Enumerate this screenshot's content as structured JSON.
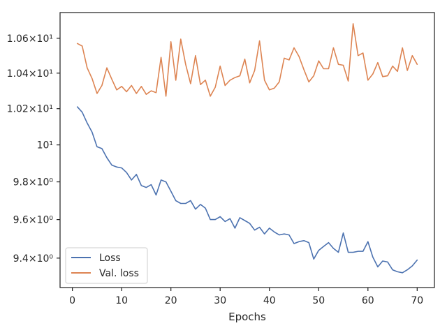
{
  "chart_data": {
    "type": "line",
    "xlabel": "Epochs",
    "ylabel": "",
    "xlim": [
      -2.5,
      73.5
    ],
    "ylim": [
      9.25,
      10.75
    ],
    "y_scale": "log",
    "grid": false,
    "legend": "lower-left",
    "x_ticks": [
      0,
      10,
      20,
      30,
      40,
      50,
      60,
      70
    ],
    "x_tick_labels": [
      "0",
      "10",
      "20",
      "30",
      "40",
      "50",
      "60",
      "70"
    ],
    "y_ticks": [
      9.4,
      9.6,
      9.8,
      10.0,
      10.2,
      10.4,
      10.6
    ],
    "y_tick_labels": [
      "9.4×10⁰",
      "9.6×10⁰",
      "9.8×10⁰",
      "10¹",
      "1.02×10¹",
      "1.04×10¹",
      "1.06×10¹"
    ],
    "x": [
      1,
      2,
      3,
      4,
      5,
      6,
      7,
      8,
      9,
      10,
      11,
      12,
      13,
      14,
      15,
      16,
      17,
      18,
      19,
      20,
      21,
      22,
      23,
      24,
      25,
      26,
      27,
      28,
      29,
      30,
      31,
      32,
      33,
      34,
      35,
      36,
      37,
      38,
      39,
      40,
      41,
      42,
      43,
      44,
      45,
      46,
      47,
      48,
      49,
      50,
      51,
      52,
      53,
      54,
      55,
      56,
      57,
      58,
      59,
      60,
      61,
      62,
      63,
      64,
      65,
      66,
      67,
      68,
      69,
      70
    ],
    "series": [
      {
        "name": "Loss",
        "color": "#4c72b0",
        "values": [
          10.21,
          10.18,
          10.12,
          10.07,
          9.99,
          9.98,
          9.93,
          9.89,
          9.88,
          9.875,
          9.85,
          9.81,
          9.84,
          9.78,
          9.77,
          9.785,
          9.73,
          9.81,
          9.8,
          9.75,
          9.7,
          9.685,
          9.685,
          9.7,
          9.655,
          9.68,
          9.66,
          9.6,
          9.6,
          9.615,
          9.59,
          9.605,
          9.555,
          9.61,
          9.595,
          9.58,
          9.545,
          9.56,
          9.525,
          9.555,
          9.535,
          9.52,
          9.525,
          9.52,
          9.475,
          9.485,
          9.49,
          9.48,
          9.395,
          9.44,
          9.46,
          9.48,
          9.45,
          9.43,
          9.53,
          9.43,
          9.43,
          9.435,
          9.435,
          9.485,
          9.405,
          9.355,
          9.385,
          9.38,
          9.34,
          9.33,
          9.325,
          9.34,
          9.36,
          9.39
        ]
      },
      {
        "name": "Val. loss",
        "color": "#dd8452",
        "values": [
          10.57,
          10.555,
          10.43,
          10.37,
          10.285,
          10.33,
          10.43,
          10.365,
          10.305,
          10.325,
          10.295,
          10.33,
          10.285,
          10.325,
          10.28,
          10.3,
          10.29,
          10.49,
          10.27,
          10.58,
          10.36,
          10.595,
          10.45,
          10.34,
          10.5,
          10.335,
          10.36,
          10.27,
          10.32,
          10.44,
          10.33,
          10.36,
          10.375,
          10.385,
          10.48,
          10.345,
          10.415,
          10.585,
          10.36,
          10.305,
          10.315,
          10.35,
          10.485,
          10.475,
          10.545,
          10.495,
          10.42,
          10.35,
          10.385,
          10.47,
          10.425,
          10.425,
          10.545,
          10.45,
          10.445,
          10.355,
          10.685,
          10.5,
          10.515,
          10.36,
          10.395,
          10.46,
          10.38,
          10.385,
          10.44,
          10.41,
          10.545,
          10.415,
          10.5,
          10.45
        ]
      }
    ]
  }
}
